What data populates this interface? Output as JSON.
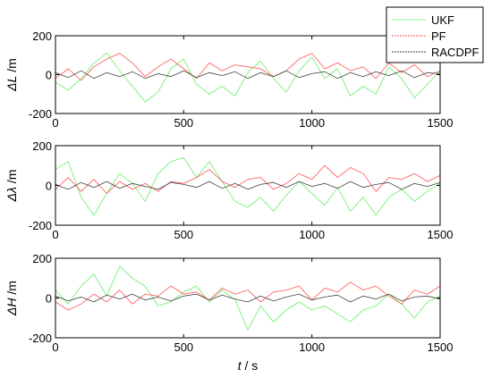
{
  "chart_data": {
    "type": "line",
    "xlabel_var": "t",
    "xlabel_unit": " / s",
    "xlim": [
      0,
      1500
    ],
    "xticks": [
      "0",
      "500",
      "1000",
      "1500"
    ],
    "grid": false,
    "legend_placement": "top-right",
    "series_meta": [
      {
        "name": "UKF",
        "color": "#66ee66"
      },
      {
        "name": "PF",
        "color": "#ff5555"
      },
      {
        "name": "RACDPF",
        "color": "#444444"
      }
    ],
    "panels": [
      {
        "ylabel_sym": "ΔL",
        "ylabel_unit": " /m",
        "ylim": [
          -200,
          200
        ],
        "yticks": [
          "200",
          "0",
          "-200"
        ],
        "series": [
          {
            "name": "UKF",
            "x": [
              0,
              50,
              100,
              150,
              200,
              250,
              300,
              350,
              400,
              450,
              500,
              550,
              600,
              650,
              700,
              750,
              800,
              850,
              900,
              950,
              1000,
              1050,
              1100,
              1150,
              1200,
              1250,
              1300,
              1350,
              1400,
              1450,
              1500
            ],
            "y": [
              -40,
              -80,
              -20,
              60,
              110,
              20,
              -60,
              -140,
              -90,
              30,
              80,
              -50,
              -100,
              -60,
              -110,
              10,
              70,
              -20,
              -90,
              20,
              90,
              -20,
              30,
              -110,
              -60,
              -100,
              40,
              -20,
              -120,
              -50,
              20
            ]
          },
          {
            "name": "PF",
            "x": [
              0,
              50,
              100,
              150,
              200,
              250,
              300,
              350,
              400,
              450,
              500,
              550,
              600,
              650,
              700,
              750,
              800,
              850,
              900,
              950,
              1000,
              1050,
              1100,
              1150,
              1200,
              1250,
              1300,
              1350,
              1400,
              1450,
              1500
            ],
            "y": [
              -20,
              30,
              -30,
              40,
              80,
              110,
              60,
              -10,
              40,
              80,
              30,
              -20,
              60,
              20,
              50,
              40,
              30,
              -10,
              20,
              80,
              110,
              30,
              60,
              20,
              40,
              -20,
              60,
              10,
              50,
              -10,
              20
            ]
          },
          {
            "name": "RACDPF",
            "x": [
              0,
              50,
              100,
              150,
              200,
              250,
              300,
              350,
              400,
              450,
              500,
              550,
              600,
              650,
              700,
              750,
              800,
              850,
              900,
              950,
              1000,
              1050,
              1100,
              1150,
              1200,
              1250,
              1300,
              1350,
              1400,
              1450,
              1500
            ],
            "y": [
              10,
              -15,
              20,
              -20,
              10,
              -10,
              15,
              -20,
              5,
              -10,
              20,
              -15,
              10,
              -5,
              15,
              -20,
              10,
              -10,
              20,
              -15,
              5,
              15,
              -20,
              10,
              -10,
              15,
              -5,
              20,
              -15,
              10,
              5
            ]
          }
        ]
      },
      {
        "ylabel_sym": "Δλ",
        "ylabel_unit": " /m",
        "ylim": [
          -200,
          200
        ],
        "yticks": [
          "200",
          "0",
          "-200"
        ],
        "series": [
          {
            "name": "UKF",
            "x": [
              0,
              50,
              100,
              150,
              200,
              250,
              300,
              350,
              400,
              450,
              500,
              550,
              600,
              650,
              700,
              750,
              800,
              850,
              900,
              950,
              1000,
              1050,
              1100,
              1150,
              1200,
              1250,
              1300,
              1350,
              1400,
              1450,
              1500
            ],
            "y": [
              80,
              120,
              -60,
              -150,
              -40,
              60,
              10,
              -80,
              60,
              120,
              140,
              40,
              120,
              20,
              -80,
              -110,
              -60,
              -130,
              -50,
              20,
              -40,
              -100,
              -10,
              -130,
              -60,
              -150,
              -60,
              -20,
              -80,
              -30,
              10
            ]
          },
          {
            "name": "PF",
            "x": [
              0,
              50,
              100,
              150,
              200,
              250,
              300,
              350,
              400,
              450,
              500,
              550,
              600,
              650,
              700,
              750,
              800,
              850,
              900,
              950,
              1000,
              1050,
              1100,
              1150,
              1200,
              1250,
              1300,
              1350,
              1400,
              1450,
              1500
            ],
            "y": [
              -20,
              40,
              -30,
              30,
              -40,
              20,
              -20,
              10,
              -30,
              20,
              10,
              40,
              80,
              20,
              -10,
              30,
              40,
              -20,
              10,
              60,
              30,
              100,
              40,
              90,
              60,
              -30,
              40,
              30,
              60,
              20,
              50
            ]
          },
          {
            "name": "RACDPF",
            "x": [
              0,
              50,
              100,
              150,
              200,
              250,
              300,
              350,
              400,
              450,
              500,
              550,
              600,
              650,
              700,
              750,
              800,
              850,
              900,
              950,
              1000,
              1050,
              1100,
              1150,
              1200,
              1250,
              1300,
              1350,
              1400,
              1450,
              1500
            ],
            "y": [
              5,
              -20,
              15,
              -10,
              20,
              -15,
              10,
              -5,
              -20,
              15,
              5,
              -10,
              20,
              -15,
              10,
              -20,
              5,
              15,
              -10,
              20,
              -5,
              10,
              -15,
              20,
              -10,
              5,
              15,
              -20,
              10,
              -5,
              15
            ]
          }
        ]
      },
      {
        "ylabel_sym": "ΔH",
        "ylabel_unit": " /m",
        "ylim": [
          -200,
          200
        ],
        "yticks": [
          "200",
          "0",
          "-200"
        ],
        "series": [
          {
            "name": "UKF",
            "x": [
              0,
              50,
              100,
              150,
              200,
              250,
              300,
              350,
              400,
              450,
              500,
              550,
              600,
              650,
              700,
              750,
              800,
              850,
              900,
              950,
              1000,
              1050,
              1100,
              1150,
              1200,
              1250,
              1300,
              1350,
              1400,
              1450,
              1500
            ],
            "y": [
              40,
              -30,
              60,
              120,
              10,
              160,
              100,
              60,
              -40,
              -20,
              30,
              60,
              -20,
              40,
              -10,
              -160,
              -40,
              -120,
              -60,
              -20,
              -60,
              -40,
              -80,
              -120,
              -60,
              -40,
              20,
              -30,
              -100,
              -20,
              10
            ]
          },
          {
            "name": "PF",
            "x": [
              0,
              50,
              100,
              150,
              200,
              250,
              300,
              350,
              400,
              450,
              500,
              550,
              600,
              650,
              700,
              750,
              800,
              850,
              900,
              950,
              1000,
              1050,
              1100,
              1150,
              1200,
              1250,
              1300,
              1350,
              1400,
              1450,
              1500
            ],
            "y": [
              -20,
              -60,
              -30,
              20,
              -20,
              40,
              -30,
              20,
              10,
              60,
              20,
              30,
              -10,
              50,
              20,
              40,
              -20,
              30,
              40,
              60,
              -10,
              50,
              30,
              80,
              40,
              60,
              10,
              -30,
              40,
              20,
              60
            ]
          },
          {
            "name": "RACDPF",
            "x": [
              0,
              50,
              100,
              150,
              200,
              250,
              300,
              350,
              400,
              450,
              500,
              550,
              600,
              650,
              700,
              750,
              800,
              850,
              900,
              950,
              1000,
              1050,
              1100,
              1150,
              1200,
              1250,
              1300,
              1350,
              1400,
              1450,
              1500
            ],
            "y": [
              10,
              -15,
              5,
              -20,
              15,
              -5,
              20,
              -10,
              5,
              -15,
              10,
              20,
              -10,
              15,
              -5,
              -20,
              10,
              -15,
              5,
              20,
              -10,
              5,
              15,
              -20,
              10,
              -5,
              20,
              -15,
              5,
              10,
              -5
            ]
          }
        ]
      }
    ]
  }
}
